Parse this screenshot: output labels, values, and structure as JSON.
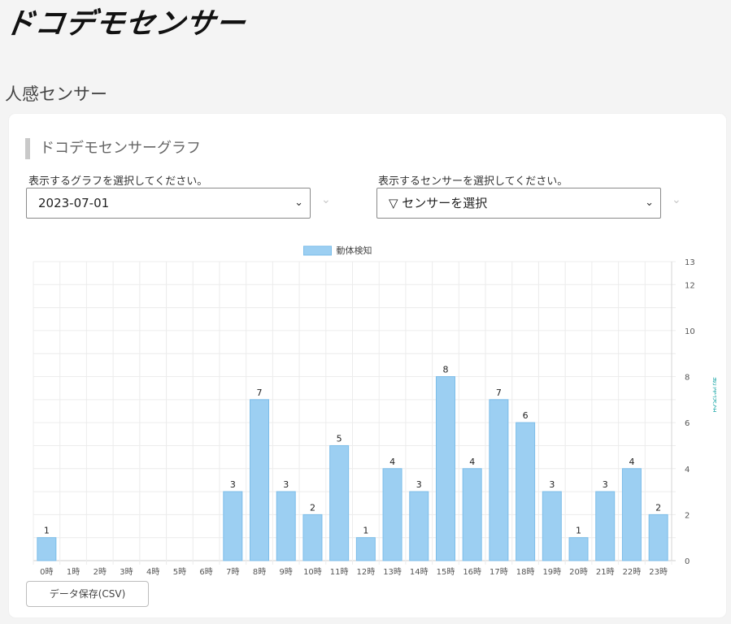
{
  "header": {
    "logo_text": "ドコデモセンサー"
  },
  "page": {
    "title": "人感センサー"
  },
  "card": {
    "section_title": "ドコデモセンサーグラフ",
    "graph_select_label": "表示するグラフを選択してください。",
    "graph_select_value": "2023-07-01",
    "sensor_select_label": "表示するセンサーを選択してください。",
    "sensor_select_value": "▽ センサーを選択",
    "csv_button_label": "データ保存(CSV)"
  },
  "icons": {
    "select_chevron": "chevron-down-icon"
  },
  "colors": {
    "bar_fill": "#9ccff2",
    "bar_stroke": "#7cbde9",
    "axis_title": "#3bb3b3"
  },
  "chart_data": {
    "type": "bar",
    "categories": [
      "0時",
      "1時",
      "2時",
      "3時",
      "4時",
      "5時",
      "6時",
      "7時",
      "8時",
      "9時",
      "10時",
      "11時",
      "12時",
      "13時",
      "14時",
      "15時",
      "16時",
      "17時",
      "18時",
      "19時",
      "20時",
      "21時",
      "22時",
      "23時"
    ],
    "series": [
      {
        "name": "動体検知",
        "values": [
          1,
          0,
          0,
          0,
          0,
          0,
          0,
          3,
          7,
          3,
          2,
          5,
          1,
          4,
          3,
          8,
          4,
          7,
          6,
          3,
          1,
          3,
          4,
          2
        ]
      }
    ],
    "ylabel": "動体検知",
    "ylim": [
      0,
      13
    ],
    "yticks": [
      0,
      2,
      4,
      6,
      8,
      10,
      12,
      13
    ],
    "y_axis_side": "right",
    "legend_position": "top-center",
    "data_labels": true,
    "grid": true
  }
}
